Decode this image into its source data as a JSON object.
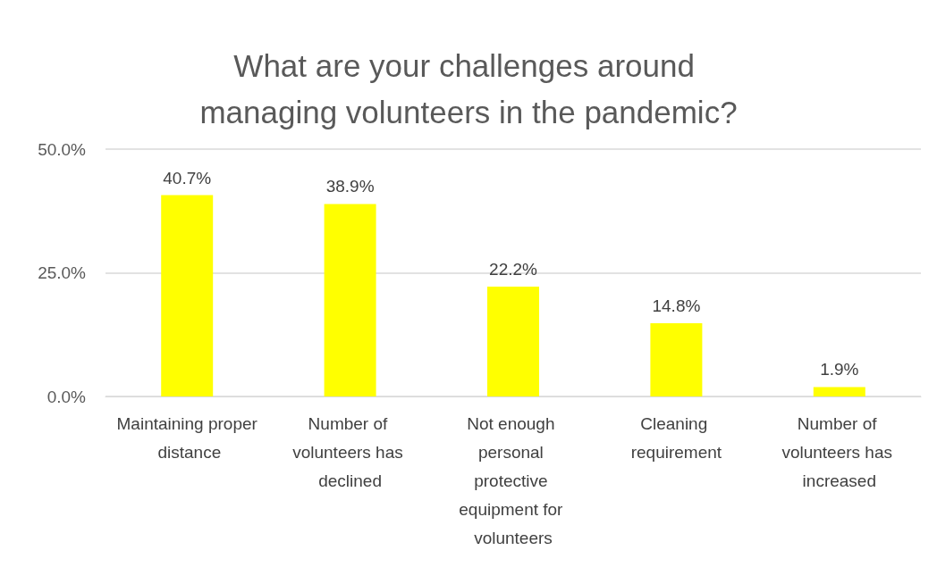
{
  "chart_data": {
    "type": "bar",
    "title": "What are your challenges around managing volunteers in the pandemic?",
    "categories": [
      "Maintaining proper distance",
      "Number of volunteers has declined",
      "Not enough personal protective equipment for volunteers",
      "Cleaning requirement",
      "Number of volunteers has increased"
    ],
    "values": [
      40.7,
      38.9,
      22.2,
      14.8,
      1.9
    ],
    "value_labels": [
      "40.7%",
      "38.9%",
      "22.2%",
      "14.8%",
      "1.9%"
    ],
    "color": "#ffff00",
    "ylim": [
      0,
      50
    ],
    "yticks": [
      {
        "value": 0,
        "label": "0.0%"
      },
      {
        "value": 25,
        "label": "25.0%"
      },
      {
        "value": 50,
        "label": "50.0%"
      }
    ],
    "grid": "y"
  }
}
